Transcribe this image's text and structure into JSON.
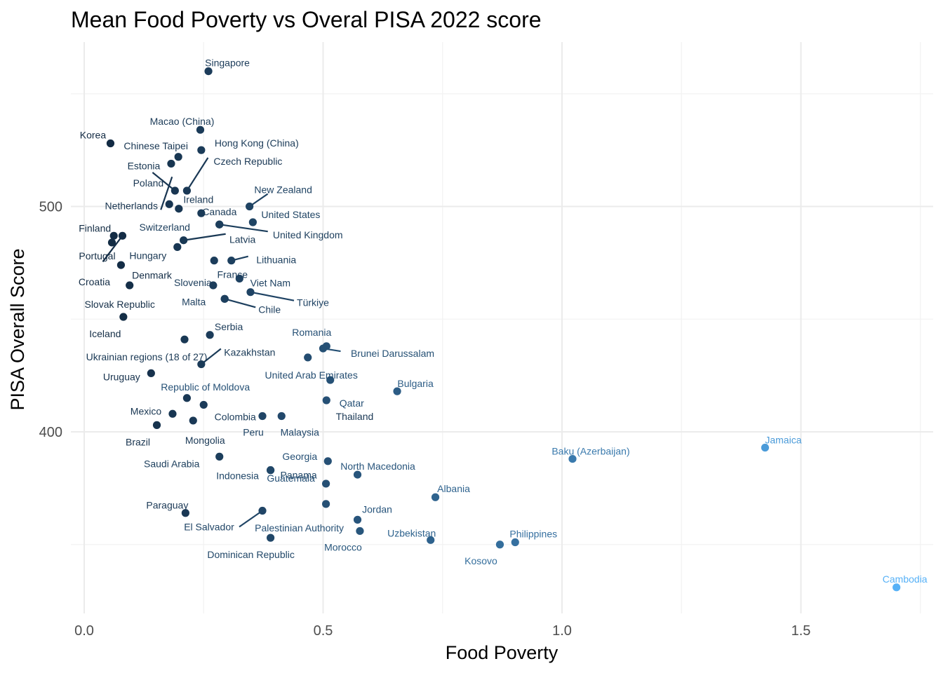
{
  "chart_data": {
    "type": "scatter",
    "title": "Mean Food Poverty vs Overal PISA 2022 score",
    "xlabel": "Food Poverty",
    "ylabel": "PISA Overall Score",
    "xlim": [
      -0.03,
      1.78
    ],
    "ylim": [
      320,
      572
    ],
    "x_ticks": [
      0.0,
      0.5,
      1.0,
      1.5
    ],
    "x_tick_labels": [
      "0.0",
      "0.5",
      "1.0",
      "1.5"
    ],
    "y_ticks": [
      400,
      500
    ],
    "y_tick_labels": [
      "400",
      "500"
    ],
    "color_scale": {
      "low": "#132B43",
      "high": "#56B1F7",
      "min": 0.05,
      "max": 1.7
    },
    "points": [
      {
        "name": "Singapore",
        "x": 0.26,
        "y": 560
      },
      {
        "name": "Macao (China)",
        "x": 0.243,
        "y": 534
      },
      {
        "name": "Korea",
        "x": 0.055,
        "y": 528
      },
      {
        "name": "Hong Kong (China)",
        "x": 0.245,
        "y": 525
      },
      {
        "name": "Chinese Taipei",
        "x": 0.197,
        "y": 522
      },
      {
        "name": "Estonia",
        "x": 0.182,
        "y": 519
      },
      {
        "name": "Czech Republic",
        "x": 0.215,
        "y": 507
      },
      {
        "name": "Poland",
        "x": 0.19,
        "y": 507
      },
      {
        "name": "Ireland",
        "x": 0.198,
        "y": 499
      },
      {
        "name": "New Zealand",
        "x": 0.346,
        "y": 500
      },
      {
        "name": "Netherlands",
        "x": 0.178,
        "y": 501
      },
      {
        "name": "Canada",
        "x": 0.245,
        "y": 497
      },
      {
        "name": "United States",
        "x": 0.353,
        "y": 493
      },
      {
        "name": "Switzerland",
        "x": 0.283,
        "y": 492
      },
      {
        "name": "United Kingdom",
        "x": 0.283,
        "y": 492
      },
      {
        "name": "Finland",
        "x": 0.062,
        "y": 487
      },
      {
        "name": "Denmark",
        "x": 0.08,
        "y": 487
      },
      {
        "name": "Portugal",
        "x": 0.058,
        "y": 484
      },
      {
        "name": "Latvia",
        "x": 0.208,
        "y": 485
      },
      {
        "name": "Hungary",
        "x": 0.195,
        "y": 482
      },
      {
        "name": "France",
        "x": 0.272,
        "y": 476
      },
      {
        "name": "Lithuania",
        "x": 0.308,
        "y": 476
      },
      {
        "name": "Croatia",
        "x": 0.077,
        "y": 474
      },
      {
        "name": "Viet Nam",
        "x": 0.325,
        "y": 468
      },
      {
        "name": "Slovenia",
        "x": 0.27,
        "y": 465
      },
      {
        "name": "Slovak Republic",
        "x": 0.095,
        "y": 465
      },
      {
        "name": "Türkiye",
        "x": 0.348,
        "y": 462
      },
      {
        "name": "Malta",
        "x": 0.294,
        "y": 459
      },
      {
        "name": "Chile",
        "x": 0.294,
        "y": 459
      },
      {
        "name": "Iceland",
        "x": 0.082,
        "y": 451
      },
      {
        "name": "Serbia",
        "x": 0.263,
        "y": 443
      },
      {
        "name": "Ukrainian regions (18 of 27)",
        "x": 0.21,
        "y": 441
      },
      {
        "name": "Romania",
        "x": 0.507,
        "y": 438
      },
      {
        "name": "Brunei Darussalam",
        "x": 0.5,
        "y": 437
      },
      {
        "name": "United Arab Emirates",
        "x": 0.468,
        "y": 433
      },
      {
        "name": "Kazakhstan",
        "x": 0.245,
        "y": 430
      },
      {
        "name": "Uruguay",
        "x": 0.14,
        "y": 426
      },
      {
        "name": "Bulgaria",
        "x": 0.655,
        "y": 418
      },
      {
        "name": "Republic of Moldova",
        "x": 0.515,
        "y": 423
      },
      {
        "name": "Qatar",
        "x": 0.507,
        "y": 414
      },
      {
        "name": "Thailand",
        "x": 0.215,
        "y": 415
      },
      {
        "name": "Colombia",
        "x": 0.25,
        "y": 412
      },
      {
        "name": "Mexico",
        "x": 0.185,
        "y": 408
      },
      {
        "name": "Peru",
        "x": 0.373,
        "y": 407
      },
      {
        "name": "Malaysia",
        "x": 0.413,
        "y": 407
      },
      {
        "name": "Mongolia",
        "x": 0.228,
        "y": 405
      },
      {
        "name": "Brazil",
        "x": 0.152,
        "y": 403
      },
      {
        "name": "Jamaica",
        "x": 1.425,
        "y": 393
      },
      {
        "name": "Baku (Azerbaijan)",
        "x": 1.022,
        "y": 388
      },
      {
        "name": "Saudi Arabia",
        "x": 0.283,
        "y": 389
      },
      {
        "name": "Georgia",
        "x": 0.51,
        "y": 387
      },
      {
        "name": "Indonesia",
        "x": 0.39,
        "y": 383
      },
      {
        "name": "Panama",
        "x": 0.39,
        "y": 383
      },
      {
        "name": "North Macedonia",
        "x": 0.572,
        "y": 381
      },
      {
        "name": "Albania",
        "x": 0.735,
        "y": 371
      },
      {
        "name": "Guatemala",
        "x": 0.506,
        "y": 377
      },
      {
        "name": "El Salvador",
        "x": 0.373,
        "y": 365
      },
      {
        "name": "Paraguay",
        "x": 0.212,
        "y": 364
      },
      {
        "name": "Jordan",
        "x": 0.572,
        "y": 361
      },
      {
        "name": "Palestinian Authority",
        "x": 0.506,
        "y": 368
      },
      {
        "name": "Morocco",
        "x": 0.577,
        "y": 356
      },
      {
        "name": "Dominican Republic",
        "x": 0.39,
        "y": 353
      },
      {
        "name": "Uzbekistan",
        "x": 0.725,
        "y": 352
      },
      {
        "name": "Philippines",
        "x": 0.902,
        "y": 351
      },
      {
        "name": "Kosovo",
        "x": 0.87,
        "y": 350
      },
      {
        "name": "Cambodia",
        "x": 1.7,
        "y": 331
      }
    ]
  }
}
